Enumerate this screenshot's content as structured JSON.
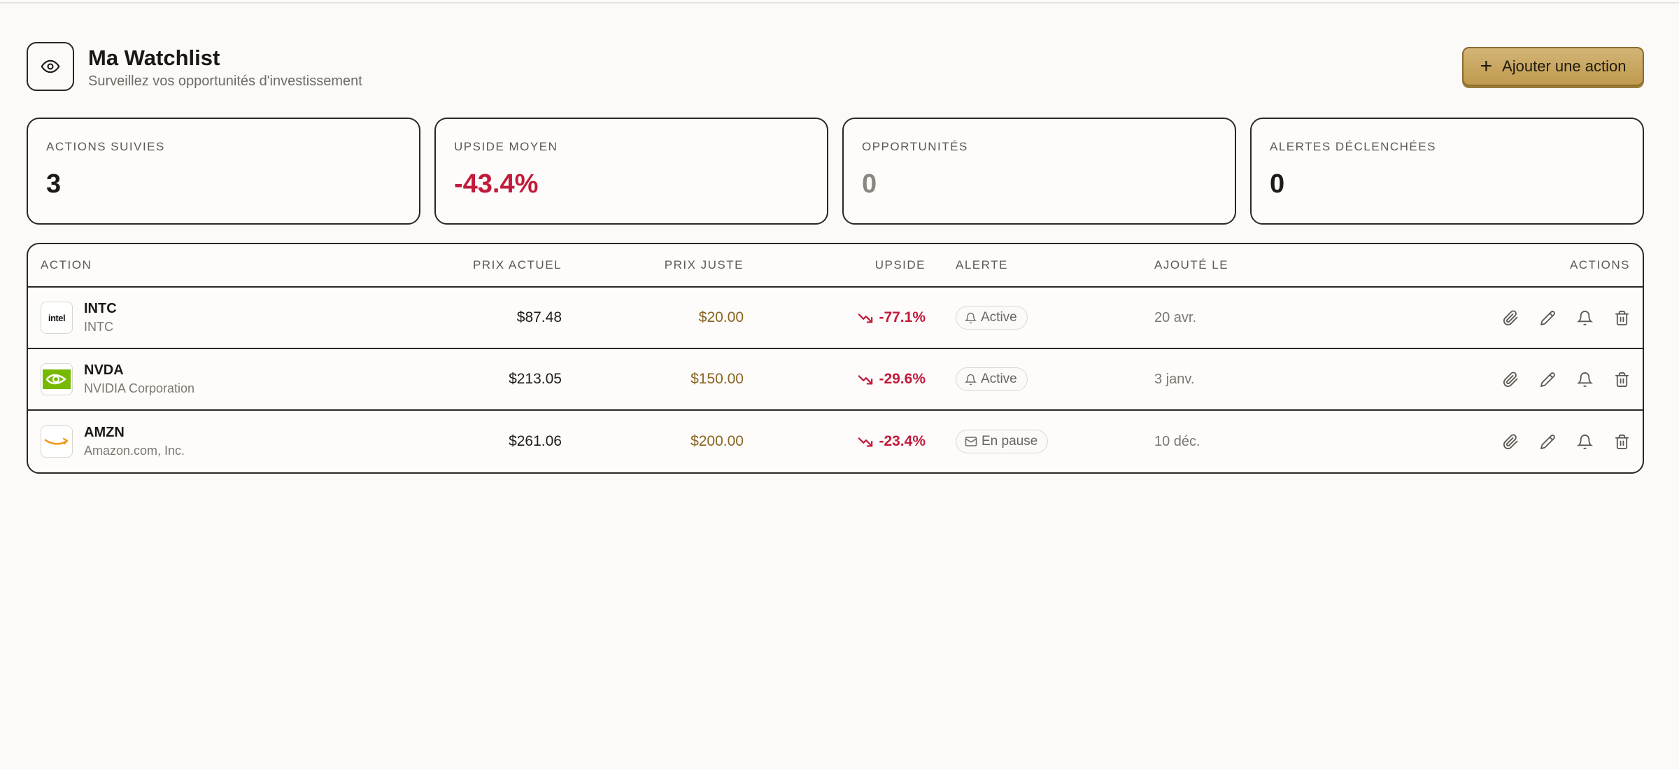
{
  "header": {
    "title": "Ma Watchlist",
    "subtitle": "Surveillez vos opportunités d'investissement",
    "add_button": "Ajouter une action",
    "icon": "eye-icon"
  },
  "stats": [
    {
      "label": "ACTIONS SUIVIES",
      "value": "3"
    },
    {
      "label": "UPSIDE MOYEN",
      "value": "-43.4%"
    },
    {
      "label": "OPPORTUNITÉS",
      "value": "0"
    },
    {
      "label": "ALERTES DÉCLENCHÉES",
      "value": "0"
    }
  ],
  "table": {
    "columns": [
      "ACTION",
      "PRIX ACTUEL",
      "PRIX JUSTE",
      "UPSIDE",
      "ALERTE",
      "AJOUTÉ LE",
      "ACTIONS"
    ],
    "rows": [
      {
        "symbol": "INTC",
        "name": "INTC",
        "logo_text": "intel",
        "price": "$87.48",
        "fair": "$20.00",
        "upside": "-77.1%",
        "alert": "Active",
        "alert_icon": "bell-icon",
        "added": "20 avr."
      },
      {
        "symbol": "NVDA",
        "name": "NVIDIA Corporation",
        "logo_text": "",
        "price": "$213.05",
        "fair": "$150.00",
        "upside": "-29.6%",
        "alert": "Active",
        "alert_icon": "bell-icon",
        "added": "3 janv."
      },
      {
        "symbol": "AMZN",
        "name": "Amazon.com, Inc.",
        "logo_text": "",
        "price": "$261.06",
        "fair": "$200.00",
        "upside": "-23.4%",
        "alert": "En pause",
        "alert_icon": "mail-icon",
        "added": "10 déc."
      }
    ]
  },
  "colors": {
    "accent_gold": "#c8a55e",
    "negative": "#c21a3a",
    "fair_price": "#8a6420",
    "border": "#2a2824"
  }
}
